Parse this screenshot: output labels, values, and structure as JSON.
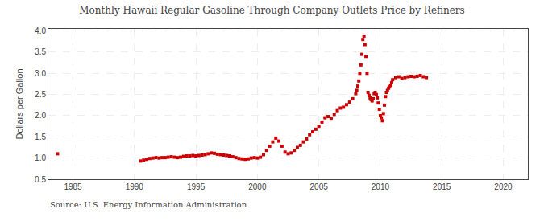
{
  "chart_data": {
    "type": "scatter",
    "title": "Monthly Hawaii Regular Gasoline Through Company Outlets Price by Refiners",
    "ylabel": "Dollars per Gallon",
    "annotations": [
      "Source: U.S. Energy Information Administration"
    ],
    "color": "#cc0000",
    "marker": "square",
    "grid": true,
    "xlim": [
      1983,
      2022
    ],
    "ylim": [
      0.5,
      4.05
    ],
    "xticks": [
      1985,
      1990,
      1995,
      2000,
      2005,
      2010,
      2015,
      2020
    ],
    "yticks": [
      0.5,
      {
        "value": 1.0,
        "label": "1.0"
      },
      1.5,
      {
        "value": 2.0,
        "label": "2.0"
      },
      2.5,
      {
        "value": 3.0,
        "label": "3.0"
      },
      3.5,
      {
        "value": 4.0,
        "label": "4.0"
      }
    ],
    "x": [
      1983.75,
      1990.5,
      1990.75,
      1991.0,
      1991.25,
      1991.5,
      1991.75,
      1992.0,
      1992.25,
      1992.5,
      1992.75,
      1993.0,
      1993.25,
      1993.5,
      1993.75,
      1994.0,
      1994.25,
      1994.5,
      1994.75,
      1995.0,
      1995.25,
      1995.5,
      1995.75,
      1996.0,
      1996.25,
      1996.5,
      1996.75,
      1997.0,
      1997.25,
      1997.5,
      1997.75,
      1998.0,
      1998.25,
      1998.5,
      1998.75,
      1999.0,
      1999.25,
      1999.5,
      1999.75,
      2000.0,
      2000.25,
      2000.5,
      2000.75,
      2001.0,
      2001.25,
      2001.5,
      2001.75,
      2002.0,
      2002.25,
      2002.5,
      2002.75,
      2003.0,
      2003.25,
      2003.5,
      2003.75,
      2004.0,
      2004.25,
      2004.5,
      2004.75,
      2005.0,
      2005.25,
      2005.5,
      2005.75,
      2006.0,
      2006.25,
      2006.5,
      2006.75,
      2007.0,
      2007.25,
      2007.5,
      2007.75,
      2008.0,
      2008.08,
      2008.17,
      2008.25,
      2008.33,
      2008.42,
      2008.5,
      2008.58,
      2008.67,
      2008.75,
      2008.83,
      2008.92,
      2009.0,
      2009.08,
      2009.17,
      2009.25,
      2009.33,
      2009.42,
      2009.5,
      2009.58,
      2009.67,
      2009.75,
      2009.83,
      2009.92,
      2010.0,
      2010.08,
      2010.17,
      2010.25,
      2010.33,
      2010.42,
      2010.5,
      2010.58,
      2010.67,
      2010.75,
      2010.83,
      2010.92,
      2011.0,
      2011.25,
      2011.5,
      2011.75,
      2012.0,
      2012.25,
      2012.5,
      2012.75,
      2013.0,
      2013.25,
      2013.5,
      2013.75
    ],
    "values": [
      1.1,
      0.93,
      0.95,
      0.97,
      0.99,
      1.0,
      1.01,
      1.0,
      1.01,
      1.01,
      1.02,
      1.03,
      1.02,
      1.01,
      1.02,
      1.04,
      1.05,
      1.05,
      1.06,
      1.05,
      1.06,
      1.07,
      1.08,
      1.1,
      1.12,
      1.11,
      1.09,
      1.08,
      1.07,
      1.06,
      1.05,
      1.03,
      1.01,
      0.99,
      0.98,
      0.97,
      0.98,
      1.0,
      1.01,
      1.0,
      1.02,
      1.08,
      1.18,
      1.28,
      1.38,
      1.47,
      1.4,
      1.28,
      1.14,
      1.1,
      1.12,
      1.18,
      1.25,
      1.3,
      1.38,
      1.45,
      1.55,
      1.62,
      1.68,
      1.75,
      1.85,
      1.95,
      1.98,
      1.94,
      2.03,
      2.12,
      2.18,
      2.2,
      2.26,
      2.32,
      2.4,
      2.52,
      2.6,
      2.7,
      2.82,
      3.0,
      3.2,
      3.45,
      3.8,
      3.88,
      3.68,
      3.4,
      3.0,
      2.55,
      2.48,
      2.42,
      2.38,
      2.35,
      2.4,
      2.52,
      2.55,
      2.5,
      2.42,
      2.3,
      2.15,
      2.0,
      1.95,
      1.88,
      2.05,
      2.25,
      2.45,
      2.55,
      2.6,
      2.65,
      2.68,
      2.72,
      2.78,
      2.85,
      2.9,
      2.92,
      2.88,
      2.9,
      2.92,
      2.93,
      2.92,
      2.93,
      2.95,
      2.92,
      2.9
    ]
  }
}
